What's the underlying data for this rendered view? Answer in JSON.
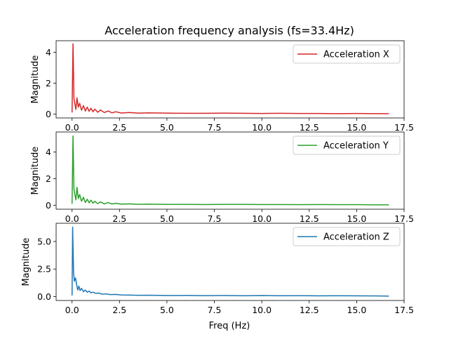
{
  "chart_data": {
    "type": "line",
    "title": "Acceleration frequency analysis (fs=33.4Hz)",
    "xlabel": "Freq (Hz)",
    "ylabel": "Magnitude",
    "xlim": [
      -0.84,
      17.5
    ],
    "xticks": [
      "0.0",
      "2.5",
      "5.0",
      "7.5",
      "10.0",
      "12.5",
      "15.0",
      "17.5"
    ],
    "xtick_values": [
      0,
      2.5,
      5,
      7.5,
      10,
      12.5,
      15,
      17.5
    ],
    "colors": {
      "x": "#d62728",
      "y": "#2ca02c",
      "z": "#1f77b4"
    },
    "subplots": [
      {
        "name": "Acceleration X",
        "legend_position": "upper right",
        "ylim": [
          -0.25,
          4.75
        ],
        "yticks": [
          "0",
          "2",
          "4"
        ],
        "ytick_values": [
          0,
          2,
          4
        ],
        "series": {
          "freq": [
            0,
            0.05,
            0.1,
            0.2,
            0.26,
            0.33,
            0.4,
            0.5,
            0.6,
            0.7,
            0.8,
            0.9,
            1.0,
            1.1,
            1.2,
            1.35,
            1.5,
            1.7,
            1.9,
            2.1,
            2.3,
            2.6,
            3.0,
            3.5,
            4.0,
            5.0,
            6.0,
            7.0,
            8.0,
            9.0,
            10.0,
            11.0,
            12.0,
            13.0,
            14.0,
            15.0,
            16.0,
            16.7
          ],
          "values": [
            0.1,
            4.55,
            1.0,
            0.3,
            1.05,
            0.45,
            0.7,
            0.25,
            0.55,
            0.2,
            0.45,
            0.18,
            0.38,
            0.15,
            0.32,
            0.12,
            0.26,
            0.1,
            0.2,
            0.08,
            0.15,
            0.07,
            0.1,
            0.06,
            0.08,
            0.06,
            0.05,
            0.05,
            0.06,
            0.05,
            0.04,
            0.05,
            0.04,
            0.04,
            0.03,
            0.04,
            0.03,
            0.03
          ]
        }
      },
      {
        "name": "Acceleration Y",
        "legend_position": "upper right",
        "ylim": [
          -0.3,
          5.5
        ],
        "yticks": [
          "0",
          "2",
          "4"
        ],
        "ytick_values": [
          0,
          2,
          4
        ],
        "series": {
          "freq": [
            0,
            0.05,
            0.1,
            0.2,
            0.26,
            0.33,
            0.4,
            0.5,
            0.6,
            0.7,
            0.8,
            0.9,
            1.0,
            1.1,
            1.2,
            1.35,
            1.5,
            1.7,
            1.9,
            2.1,
            2.3,
            2.6,
            3.0,
            3.5,
            4.0,
            5.0,
            6.0,
            7.0,
            8.0,
            9.0,
            10.0,
            11.0,
            12.0,
            13.0,
            14.0,
            15.0,
            16.0,
            16.7
          ],
          "values": [
            0.1,
            5.2,
            1.2,
            0.4,
            1.35,
            0.5,
            0.8,
            0.3,
            0.6,
            0.2,
            0.45,
            0.18,
            0.38,
            0.15,
            0.3,
            0.12,
            0.25,
            0.1,
            0.2,
            0.09,
            0.15,
            0.08,
            0.1,
            0.07,
            0.08,
            0.06,
            0.06,
            0.05,
            0.06,
            0.06,
            0.05,
            0.05,
            0.04,
            0.05,
            0.04,
            0.04,
            0.03,
            0.03
          ]
        }
      },
      {
        "name": "Acceleration Z",
        "legend_position": "upper right",
        "ylim": [
          -0.35,
          6.65
        ],
        "yticks": [
          "0.0",
          "2.5",
          "5.0"
        ],
        "ytick_values": [
          0,
          2.5,
          5
        ],
        "series": {
          "freq": [
            0,
            0.03,
            0.08,
            0.12,
            0.18,
            0.24,
            0.3,
            0.36,
            0.42,
            0.5,
            0.6,
            0.7,
            0.8,
            0.9,
            1.0,
            1.1,
            1.25,
            1.4,
            1.6,
            1.8,
            2.0,
            2.3,
            2.6,
            3.0,
            3.5,
            4.0,
            5.0,
            6.0,
            7.0,
            8.0,
            9.0,
            10.0,
            11.0,
            12.0,
            13.0,
            14.0,
            15.0,
            16.0,
            16.7
          ],
          "values": [
            0.1,
            6.3,
            2.2,
            1.4,
            1.7,
            1.1,
            0.6,
            0.95,
            0.55,
            0.75,
            0.45,
            0.6,
            0.4,
            0.5,
            0.35,
            0.4,
            0.3,
            0.32,
            0.22,
            0.25,
            0.18,
            0.2,
            0.15,
            0.14,
            0.12,
            0.13,
            0.1,
            0.11,
            0.09,
            0.1,
            0.08,
            0.1,
            0.08,
            0.09,
            0.07,
            0.08,
            0.07,
            0.06,
            0.05
          ]
        }
      }
    ]
  }
}
